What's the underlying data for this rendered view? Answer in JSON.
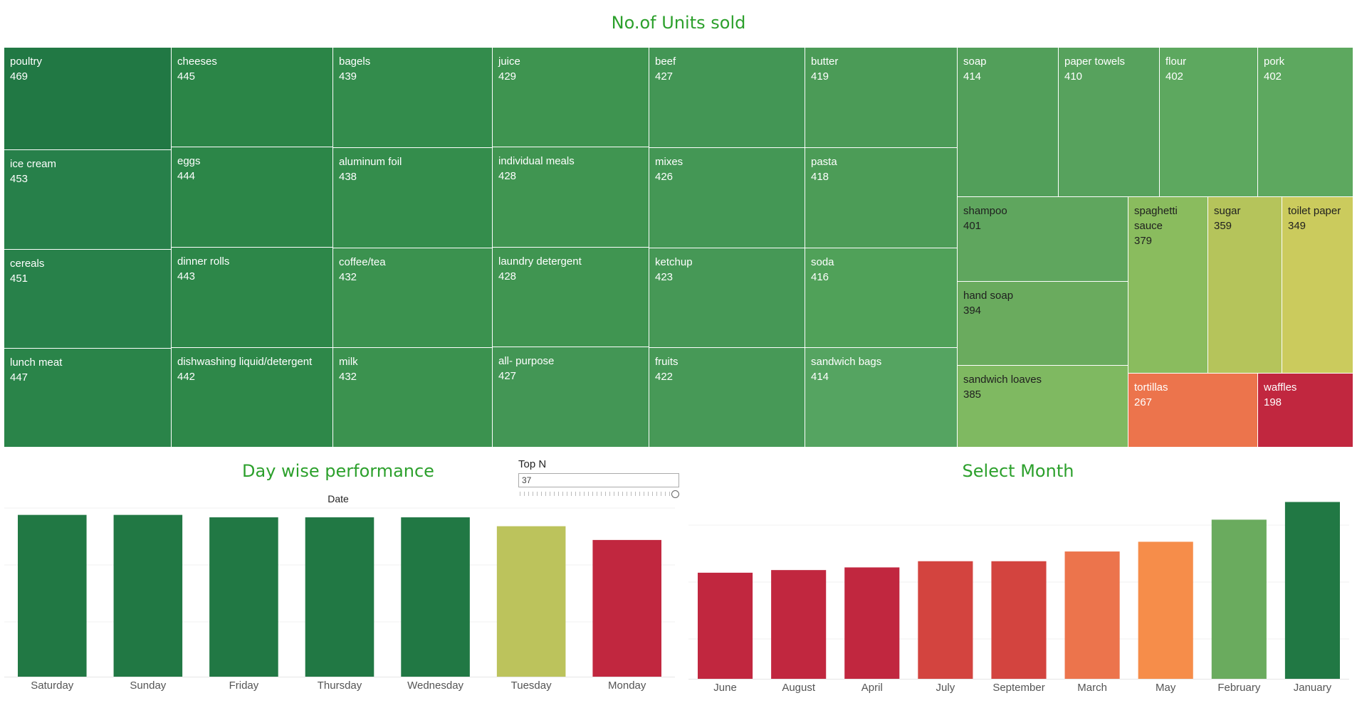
{
  "treemap": {
    "title": "No.of Units sold",
    "items": [
      {
        "label": "poultry",
        "value": 469,
        "color": "#217844"
      },
      {
        "label": "cheeses",
        "value": 445,
        "color": "#2b8547"
      },
      {
        "label": "bagels",
        "value": 439,
        "color": "#338c4c"
      },
      {
        "label": "juice",
        "value": 429,
        "color": "#3e9450"
      },
      {
        "label": "beef",
        "value": 427,
        "color": "#439655"
      },
      {
        "label": "butter",
        "value": 419,
        "color": "#4b9b57"
      },
      {
        "label": "soap",
        "value": 414,
        "color": "#529f5a"
      },
      {
        "label": "paper towels",
        "value": 410,
        "color": "#57a25d"
      },
      {
        "label": "flour",
        "value": 402,
        "color": "#5da85f"
      },
      {
        "label": "pork",
        "value": 402,
        "color": "#5da85f"
      },
      {
        "label": "ice cream",
        "value": 453,
        "color": "#27804a"
      },
      {
        "label": "eggs",
        "value": 444,
        "color": "#2c8648"
      },
      {
        "label": "aluminum foil",
        "value": 438,
        "color": "#348d4c"
      },
      {
        "label": "individual meals",
        "value": 428,
        "color": "#409551"
      },
      {
        "label": "mixes",
        "value": 426,
        "color": "#449755"
      },
      {
        "label": "pasta",
        "value": 418,
        "color": "#4c9c57"
      },
      {
        "label": "cereals",
        "value": 451,
        "color": "#28814a"
      },
      {
        "label": "dinner rolls",
        "value": 443,
        "color": "#2d8749"
      },
      {
        "label": "coffee/tea",
        "value": 432,
        "color": "#3b924f"
      },
      {
        "label": "laundry detergent",
        "value": 428,
        "color": "#409551"
      },
      {
        "label": "ketchup",
        "value": 423,
        "color": "#469856"
      },
      {
        "label": "soda",
        "value": 416,
        "color": "#50a159"
      },
      {
        "label": "lunch meat",
        "value": 447,
        "color": "#2a8449"
      },
      {
        "label": "dishwashing liquid/detergent",
        "value": 442,
        "color": "#2e8849"
      },
      {
        "label": "milk",
        "value": 432,
        "color": "#3b924f"
      },
      {
        "label": "all- purpose",
        "value": 427,
        "color": "#439655"
      },
      {
        "label": "fruits",
        "value": 422,
        "color": "#479957"
      },
      {
        "label": "sandwich bags",
        "value": 414,
        "color": "#55a461"
      },
      {
        "label": "shampoo",
        "value": 401,
        "color": "#5fa65e"
      },
      {
        "label": "hand soap",
        "value": 394,
        "color": "#6aab5e"
      },
      {
        "label": "sandwich loaves",
        "value": 385,
        "color": "#7fb961"
      },
      {
        "label": "spaghetti sauce",
        "value": 379,
        "color": "#8abc5e"
      },
      {
        "label": "sugar",
        "value": 359,
        "color": "#b5c45b"
      },
      {
        "label": "toilet paper",
        "value": 349,
        "color": "#cbcb5d"
      },
      {
        "label": "tortillas",
        "value": 267,
        "color": "#ec744c"
      },
      {
        "label": "waffles",
        "value": 198,
        "color": "#c1273f"
      }
    ]
  },
  "filter": {
    "label": "Top N",
    "value": "37"
  },
  "chart_data": [
    {
      "type": "bar",
      "title": "Day wise performance",
      "xlabel": "Date",
      "categories": [
        "Saturday",
        "Sunday",
        "Friday",
        "Thursday",
        "Wednesday",
        "Tuesday",
        "Monday"
      ],
      "values": [
        100,
        100,
        98.5,
        98.5,
        98.5,
        93,
        84.5
      ],
      "colors": [
        "#217844",
        "#217844",
        "#217844",
        "#217844",
        "#217844",
        "#bcc35c",
        "#c1273f"
      ],
      "ylim": [
        0,
        106
      ]
    },
    {
      "type": "bar",
      "title": "Select Month",
      "categories": [
        "June",
        "August",
        "April",
        "July",
        "September",
        "March",
        "May",
        "February",
        "January"
      ],
      "values": [
        60,
        61.5,
        63,
        66.5,
        66.5,
        72,
        77.5,
        90,
        100
      ],
      "colors": [
        "#c1273f",
        "#c1273f",
        "#c1273f",
        "#d3443f",
        "#d3443f",
        "#ec744c",
        "#f68d4a",
        "#6aab5e",
        "#217844"
      ],
      "ylim": [
        0,
        101
      ]
    }
  ]
}
